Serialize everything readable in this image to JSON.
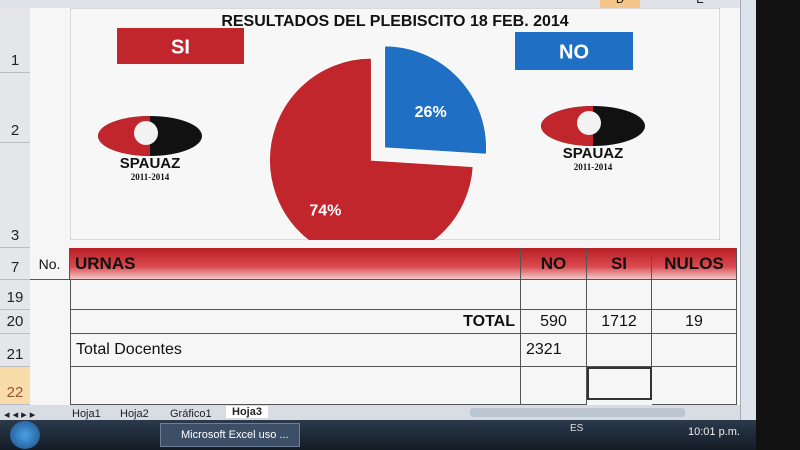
{
  "chart_data": {
    "type": "pie",
    "title": "RESULTADOS DEL PLEBISCITO  18 FEB. 2014",
    "categories": [
      "SI",
      "NO"
    ],
    "values": [
      74,
      26
    ],
    "value_labels": [
      "74%",
      "26%"
    ],
    "colors": [
      "#c0262c",
      "#1f6fc4"
    ]
  },
  "logos": [
    {
      "name": "SPAUAZ",
      "years": "2011-2014"
    },
    {
      "name": "SPAUAZ",
      "years": "2011-2014"
    }
  ],
  "columns": [
    "D",
    "E"
  ],
  "row_headers": [
    "1",
    "2",
    "3",
    "7",
    "19",
    "20",
    "21",
    "22"
  ],
  "table": {
    "header": [
      "No.",
      "URNAS",
      "NO",
      "SI",
      "NULOS"
    ],
    "total": {
      "label": "TOTAL",
      "no": 590,
      "si": 1712,
      "nulos": 19
    },
    "docentes": {
      "label": "Total Docentes",
      "value": 2321
    }
  },
  "sheet_tabs": [
    "Hoja1",
    "Hoja2",
    "Gráfico1",
    "Hoja3"
  ],
  "taskbar": {
    "window": "Microsoft Excel uso ...",
    "language": "ES",
    "clock": "10:01 p.m."
  }
}
